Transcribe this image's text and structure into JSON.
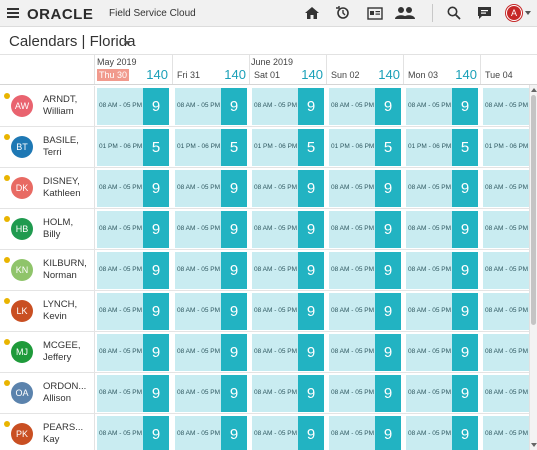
{
  "app": {
    "brand": "ORACLE",
    "product": "Field Service Cloud",
    "user_initial": "A",
    "icons": [
      "menu-icon",
      "home-icon",
      "dispatch-icon",
      "calendar-card-icon",
      "team-icon",
      "search-icon",
      "chat-icon"
    ]
  },
  "page": {
    "title": "Calendars | Florida"
  },
  "months": [
    "May 2019",
    "June 2019"
  ],
  "days": [
    {
      "label": "Thu 30",
      "total": "140",
      "today": true
    },
    {
      "label": "Fri 31",
      "total": "140",
      "today": false
    },
    {
      "label": "Sat 01",
      "total": "140",
      "today": false
    },
    {
      "label": "Sun 02",
      "total": "140",
      "today": false
    },
    {
      "label": "Mon 03",
      "total": "140",
      "today": false
    },
    {
      "label": "Tue 04",
      "total": "",
      "today": false
    }
  ],
  "technicians": [
    {
      "initials": "AW",
      "last": "ARNDT,",
      "first": "William",
      "color": "#e9636f",
      "hours": "08 AM - 05 PM",
      "count": "9"
    },
    {
      "initials": "BT",
      "last": "BASILE,",
      "first": "Terri",
      "color": "#1e78b4",
      "hours": "01 PM - 06 PM",
      "count": "5"
    },
    {
      "initials": "DK",
      "last": "DISNEY,",
      "first": "Kathleen",
      "color": "#e86a63",
      "hours": "08 AM - 05 PM",
      "count": "9"
    },
    {
      "initials": "HB",
      "last": "HOLM,",
      "first": "Billy",
      "color": "#1f9a4f",
      "hours": "08 AM - 05 PM",
      "count": "9"
    },
    {
      "initials": "KN",
      "last": "KILBURN,",
      "first": "Norman",
      "color": "#8fc46a",
      "hours": "08 AM - 05 PM",
      "count": "9"
    },
    {
      "initials": "LK",
      "last": "LYNCH,",
      "first": "Kevin",
      "color": "#c94f22",
      "hours": "08 AM - 05 PM",
      "count": "9"
    },
    {
      "initials": "MJ",
      "last": "MCGEE,",
      "first": "Jeffery",
      "color": "#1e9a3a",
      "hours": "08 AM - 05 PM",
      "count": "9"
    },
    {
      "initials": "OA",
      "last": "ORDON...",
      "first": "Allison",
      "color": "#5b83ad",
      "hours": "08 AM - 05 PM",
      "count": "9"
    },
    {
      "initials": "PK",
      "last": "PEARS...",
      "first": "Kay",
      "color": "#c94f22",
      "hours": "08 AM - 05 PM",
      "count": "9"
    }
  ]
}
